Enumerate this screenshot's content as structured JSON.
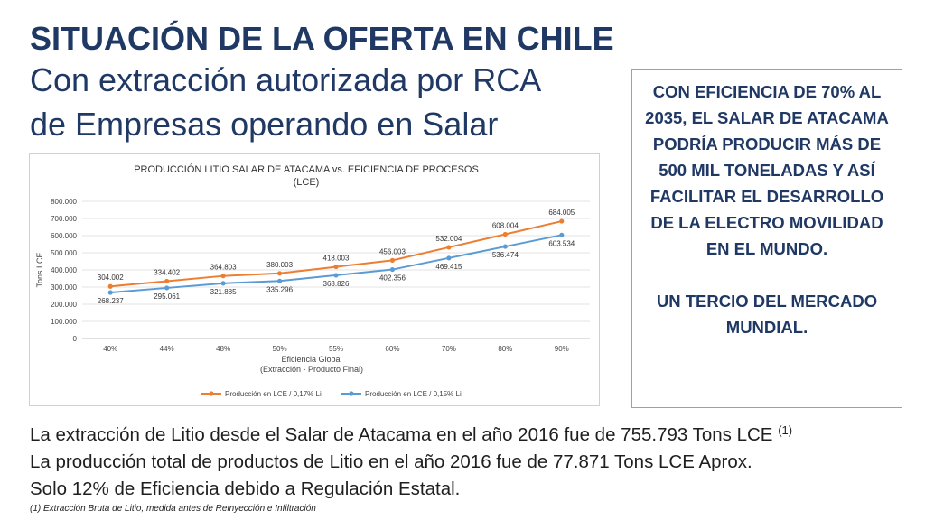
{
  "slide": {
    "title_bold": "SITUACIÓN DE LA OFERTA EN CHILE",
    "title_line2": "Con extracción autorizada por RCA",
    "title_line3": "de Empresas operando en Salar"
  },
  "callout": {
    "paragraph1": "CON EFICIENCIA DE 70% AL 2035, EL SALAR DE ATACAMA PODRÍA PRODUCIR MÁS DE 500 MIL TONELADAS Y ASÍ FACILITAR EL DESARROLLO DE LA ELECTRO MOVILIDAD EN EL MUNDO.",
    "paragraph2": "UN TERCIO DEL MERCADO MUNDIAL."
  },
  "body": {
    "line1": "La extracción de Litio desde el Salar de Atacama en el año 2016 fue de 755.793 Tons LCE ",
    "line1_ref": "(1)",
    "line2": "La producción total de productos de Litio en el año 2016 fue de 77.871 Tons LCE Aprox.",
    "line3": "Solo 12% de Eficiencia debido a Regulación Estatal."
  },
  "footnote": "(1) Extracción Bruta de Litio, medida antes de Reinyección e Infiltración",
  "chart_data": {
    "type": "line",
    "title_line1": "PRODUCCIÓN LITIO SALAR DE ATACAMA vs. EFICIENCIA DE PROCESOS",
    "title_line2": "(LCE)",
    "ylabel": "Tons LCE",
    "xlabel_line1": "Eficiencia Global",
    "xlabel_line2": "(Extracción - Producto Final)",
    "categories": [
      "40%",
      "44%",
      "48%",
      "50%",
      "55%",
      "60%",
      "70%",
      "80%",
      "90%"
    ],
    "ylim": [
      0,
      800000
    ],
    "yticks": [
      0,
      100000,
      200000,
      300000,
      400000,
      500000,
      600000,
      700000,
      800000
    ],
    "ytick_labels": [
      "0",
      "100.000",
      "200.000",
      "300.000",
      "400.000",
      "500.000",
      "600.000",
      "700.000",
      "800.000"
    ],
    "grid": true,
    "legend_position": "bottom",
    "series": [
      {
        "name": "Producción en LCE / 0,17% Li",
        "color": "#ed7d31",
        "label_position": "above",
        "values": [
          304002,
          334402,
          364803,
          380003,
          418003,
          456003,
          532004,
          608004,
          684005
        ],
        "labels": [
          "304.002",
          "334.402",
          "364.803",
          "380.003",
          "418.003",
          "456.003",
          "532.004",
          "608.004",
          "684.005"
        ]
      },
      {
        "name": "Producción en LCE / 0,15% Li",
        "color": "#5b9bd5",
        "label_position": "below",
        "values": [
          268237,
          295061,
          321885,
          335296,
          368826,
          402356,
          469415,
          536474,
          603534
        ],
        "labels": [
          "268.237",
          "295.061",
          "321.885",
          "335.296",
          "368.826",
          "402.356",
          "469.415",
          "536.474",
          "603.534"
        ]
      }
    ]
  }
}
